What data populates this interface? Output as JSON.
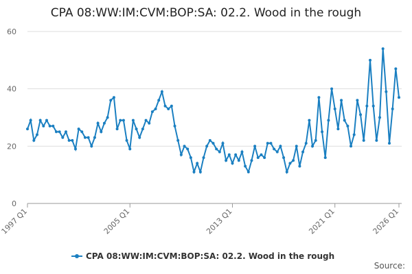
{
  "chart_data": {
    "type": "line",
    "title": "CPA 08:WW:IM:CVM:BOP:SA: 02.2. Wood in the rough",
    "source": "Source:",
    "categories": [
      "1997 Q1",
      null,
      null,
      null,
      null,
      null,
      null,
      null,
      null,
      null,
      null,
      null,
      null,
      null,
      null,
      null,
      null,
      null,
      null,
      null,
      null,
      null,
      null,
      null,
      null,
      null,
      null,
      null,
      null,
      null,
      null,
      null,
      "2005 Q1",
      null,
      null,
      null,
      null,
      null,
      null,
      null,
      null,
      null,
      null,
      null,
      null,
      null,
      null,
      null,
      null,
      null,
      null,
      null,
      null,
      null,
      null,
      null,
      null,
      null,
      null,
      null,
      null,
      null,
      null,
      null,
      "2013 Q1",
      null,
      null,
      null,
      null,
      null,
      null,
      null,
      null,
      null,
      null,
      null,
      null,
      null,
      null,
      null,
      null,
      null,
      null,
      null,
      null,
      null,
      null,
      null,
      null,
      null,
      null,
      null,
      null,
      null,
      null,
      null,
      "2021 Q1",
      null,
      null,
      null,
      null,
      null,
      null,
      null,
      null,
      null,
      null,
      null,
      null,
      null,
      null,
      null,
      null,
      null,
      null,
      null,
      "2026 Q1"
    ],
    "series": [
      {
        "name": "CPA 08:WW:IM:CVM:BOP:SA: 02.2. Wood in the rough",
        "color": "#1a7fc1",
        "values": [
          26,
          29,
          22,
          24,
          29,
          27,
          29,
          27,
          27,
          25,
          25,
          23,
          25,
          22,
          22,
          19,
          26,
          25,
          23,
          23,
          20,
          23,
          28,
          25,
          28,
          30,
          36,
          37,
          26,
          29,
          29,
          22,
          19,
          29,
          26,
          23,
          26,
          29,
          28,
          32,
          33,
          36,
          39,
          34,
          33,
          34,
          27,
          22,
          17,
          20,
          19,
          16,
          11,
          14,
          11,
          16,
          20,
          22,
          21,
          19,
          18,
          21,
          15,
          17,
          14,
          17,
          15,
          18,
          13,
          11,
          15,
          20,
          16,
          17,
          16,
          21,
          21,
          19,
          18,
          20,
          16,
          11,
          14,
          15,
          20,
          13,
          18,
          21,
          29,
          20,
          22,
          37,
          25,
          16,
          29,
          40,
          33,
          26,
          36,
          29,
          27,
          20,
          24,
          36,
          31,
          22,
          34,
          50,
          34,
          22,
          30,
          54,
          39,
          21,
          33,
          47,
          37
        ]
      }
    ],
    "ylim": [
      0,
      60
    ],
    "yticks": [
      0,
      20,
      40,
      60
    ],
    "grid": true
  }
}
